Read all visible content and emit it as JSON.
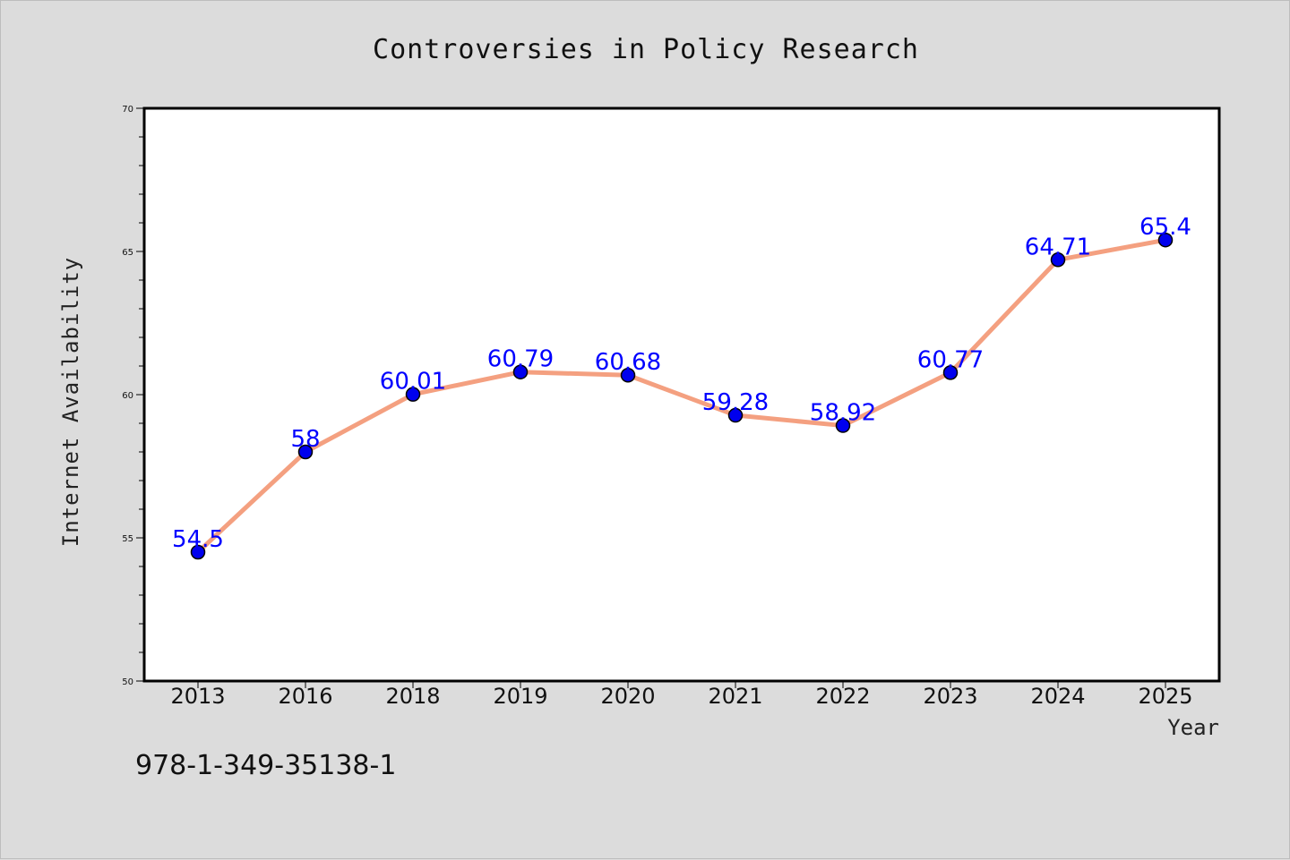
{
  "chart_data": {
    "type": "line",
    "title": "Controversies in Policy Research",
    "xlabel": "Year",
    "ylabel": "Internet Availability",
    "categories": [
      "2013",
      "2016",
      "2018",
      "2019",
      "2020",
      "2021",
      "2022",
      "2023",
      "2024",
      "2025"
    ],
    "series": [
      {
        "values": [
          54.5,
          58,
          60.01,
          60.79,
          60.68,
          59.28,
          58.92,
          60.77,
          64.71,
          65.4
        ],
        "labels": [
          "54.5",
          "58",
          "60.01",
          "60.79",
          "60.68",
          "59.28",
          "58.92",
          "60.77",
          "64.71",
          "65.4"
        ]
      }
    ],
    "ylim": [
      50,
      70
    ],
    "yticks": [
      50,
      55,
      60,
      65,
      70
    ],
    "grid": false,
    "colors": {
      "line": "#f4a080",
      "marker": "#0000ee",
      "label": "#0000ff",
      "background": "#dcdcdc",
      "plot_background": "#ffffff"
    }
  },
  "footnote": "978-1-349-35138-1"
}
